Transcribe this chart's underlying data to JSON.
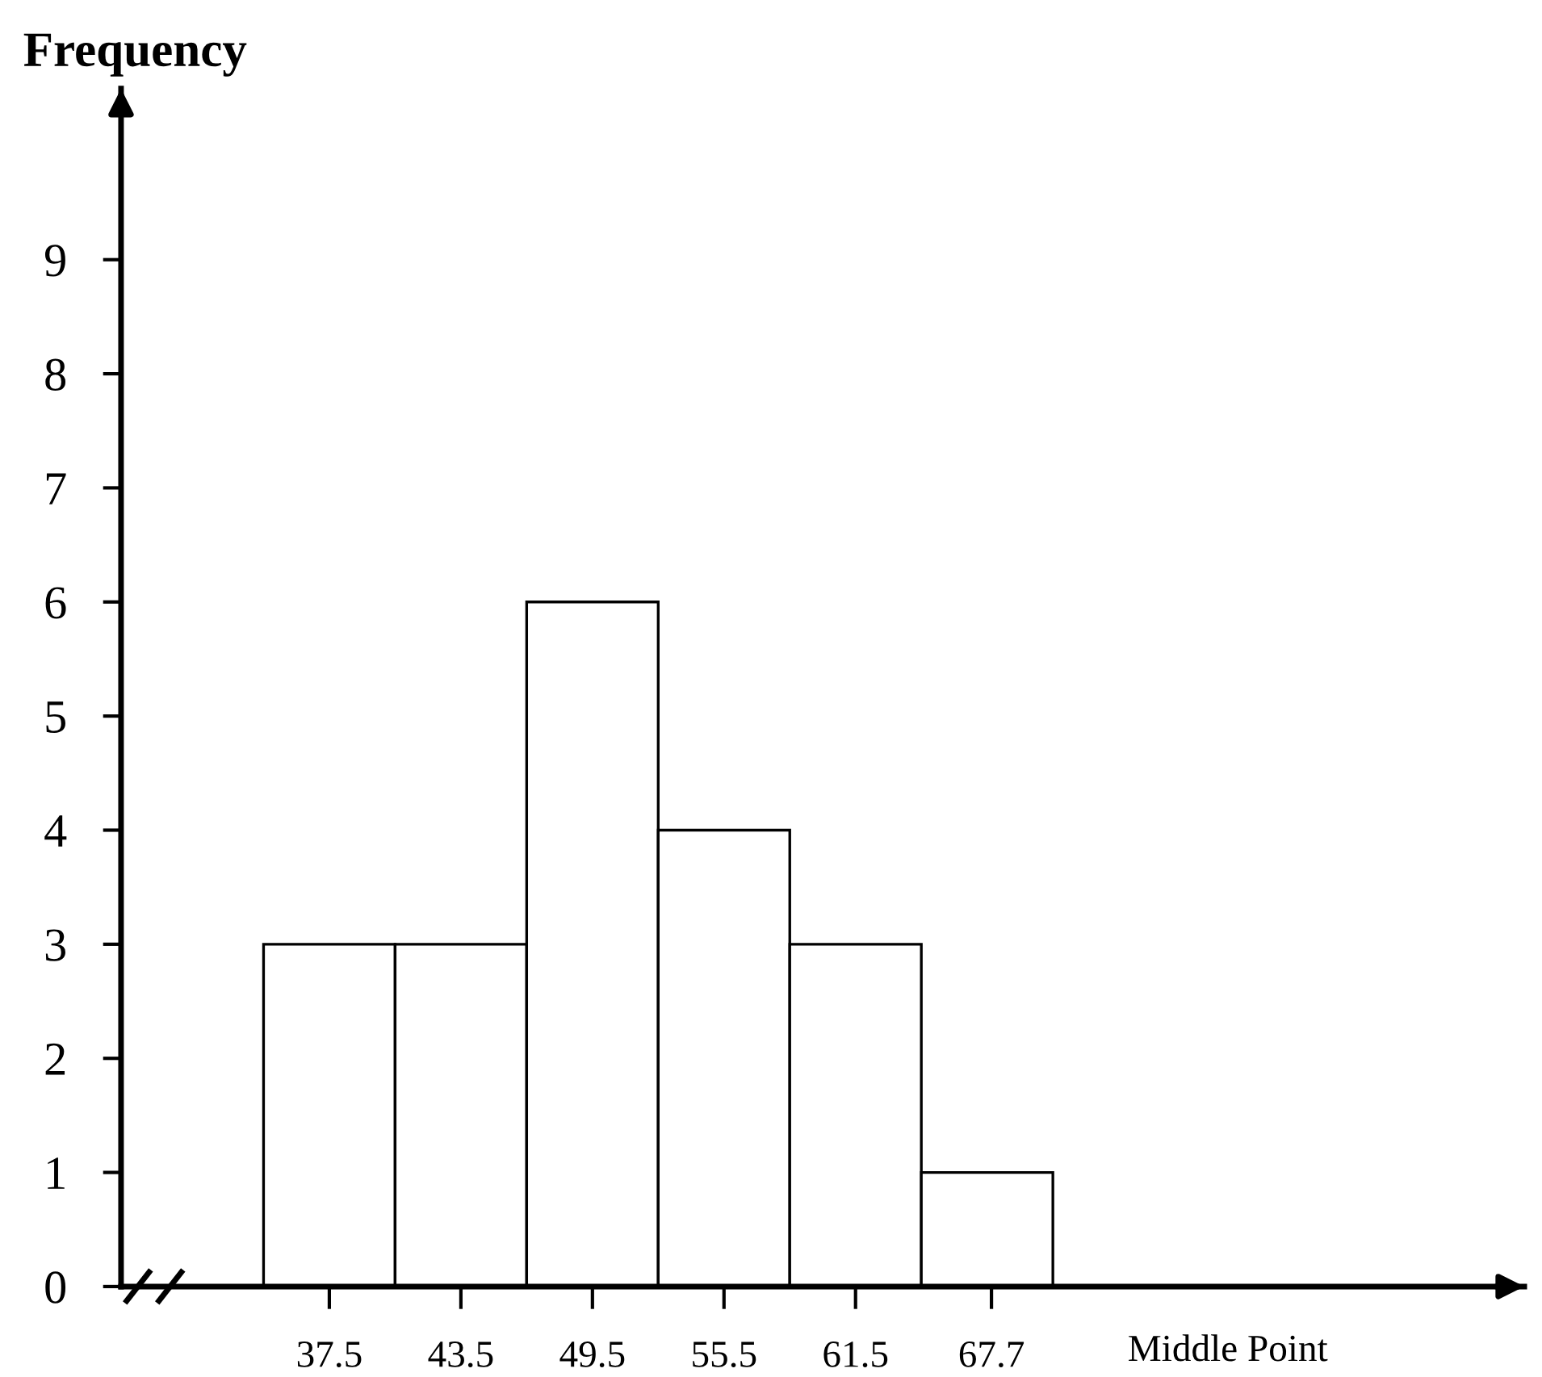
{
  "chart_data": {
    "type": "histogram",
    "xlabel": "Middle Point",
    "ylabel": "Frequency",
    "bins": [
      34.5,
      40.5,
      46.5,
      52.5,
      58.5,
      64.5,
      70.5
    ],
    "values": [
      3,
      3,
      6,
      4,
      3,
      1
    ],
    "color": "#ffffff",
    "xlim": [
      28,
      92
    ],
    "ylim": [
      0,
      10.5
    ],
    "xticks": [
      37.5,
      43.5,
      49.5,
      55.5,
      61.5,
      67.7
    ],
    "yticks": [
      0,
      1,
      2,
      3,
      4,
      5,
      6,
      7,
      8,
      9
    ],
    "grid": false,
    "legend": false
  }
}
